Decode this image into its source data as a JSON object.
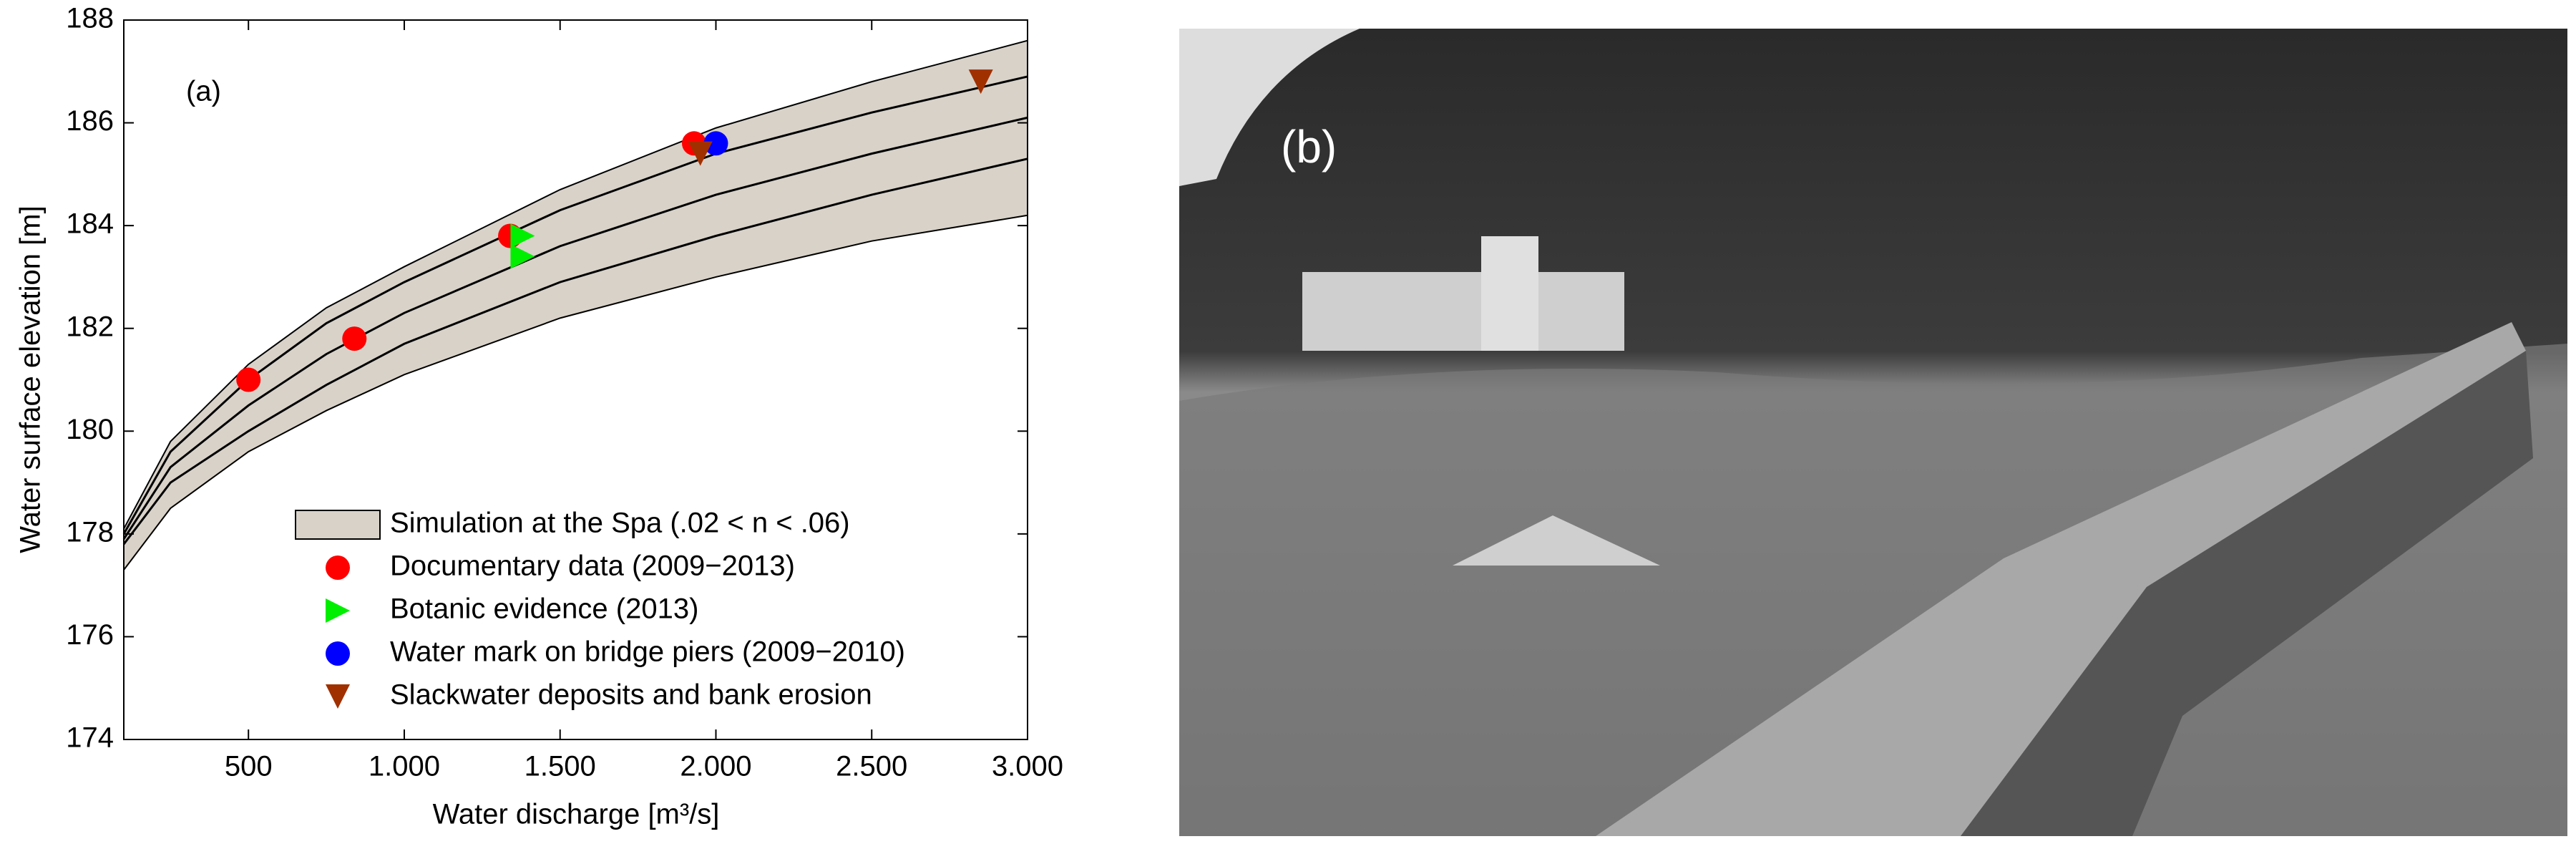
{
  "chart_data": {
    "type": "scatter",
    "annotation": "(a)",
    "xlabel": "Water discharge [m³/s]",
    "ylabel": "Water surface elevation [m]",
    "xlim": [
      100,
      3000
    ],
    "ylim": [
      174,
      188
    ],
    "xticks": [
      500,
      {
        "value": 1000,
        "label": "1.000"
      },
      {
        "value": 1500,
        "label": "1.500"
      },
      {
        "value": 2000,
        "label": "2.000"
      },
      {
        "value": 2500,
        "label": "2.500"
      },
      {
        "value": 3000,
        "label": "3.000"
      }
    ],
    "yticks": [
      174,
      176,
      178,
      180,
      182,
      184,
      186,
      188
    ],
    "legend": "lower right",
    "x": [
      100,
      250,
      500,
      750,
      1000,
      1500,
      2000,
      2500,
      3000
    ],
    "band": {
      "name": "Simulation at the Spa (.02 < n < .06)",
      "color": "#d8d2c9",
      "upper": [
        178.1,
        179.8,
        181.3,
        182.4,
        183.2,
        184.7,
        185.9,
        186.8,
        187.6
      ],
      "lower": [
        177.3,
        178.5,
        179.6,
        180.4,
        181.1,
        182.2,
        183.0,
        183.7,
        184.2
      ]
    },
    "lines": [
      {
        "values": [
          178.0,
          179.6,
          181.0,
          182.1,
          182.9,
          184.3,
          185.4,
          186.2,
          186.9
        ]
      },
      {
        "values": [
          177.9,
          179.3,
          180.5,
          181.5,
          182.3,
          183.6,
          184.6,
          185.4,
          186.1
        ]
      },
      {
        "values": [
          177.8,
          179.0,
          180.0,
          180.9,
          181.7,
          182.9,
          183.8,
          184.6,
          185.3
        ]
      }
    ],
    "series": [
      {
        "name": "Documentary data (2009−2013)",
        "color": "#ff0000",
        "marker": "o",
        "x": [
          500,
          840,
          1340,
          1930
        ],
        "values": [
          181.0,
          181.8,
          183.8,
          185.6
        ]
      },
      {
        "name": "Botanic evidence (2013)",
        "color": "#00ee00",
        "marker": ">",
        "x": [
          1380,
          1380
        ],
        "values": [
          183.8,
          183.4
        ]
      },
      {
        "name": "Water mark on bridge piers (2009−2010)",
        "color": "#0000ff",
        "marker": "o",
        "x": [
          2000
        ],
        "values": [
          185.6
        ]
      },
      {
        "name": "Slackwater deposits and bank erosion",
        "color": "#a03000",
        "marker": "v",
        "x": [
          1950,
          2850
        ],
        "values": [
          185.4,
          186.8
        ]
      }
    ]
  },
  "photo": {
    "label": "(b)"
  }
}
